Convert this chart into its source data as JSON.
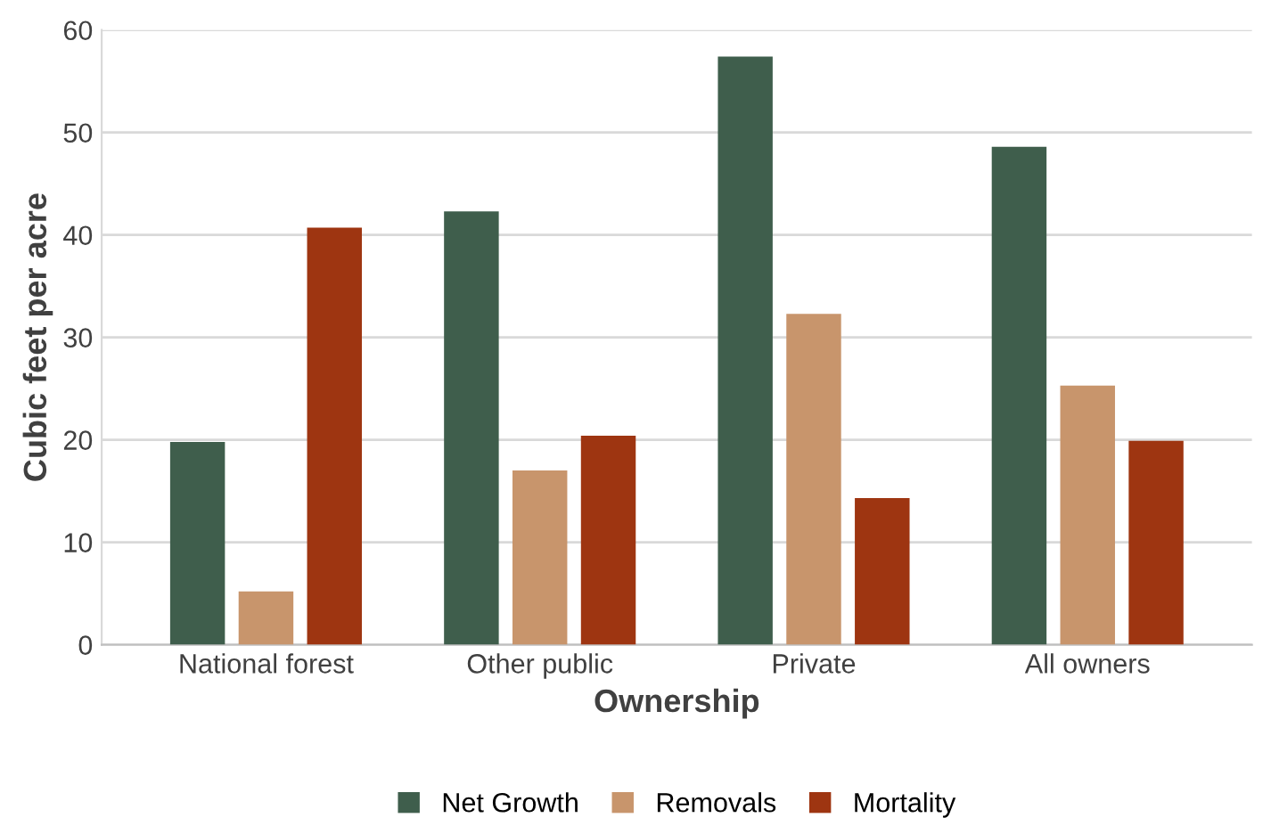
{
  "chart_data": {
    "type": "bar",
    "xlabel": "Ownership",
    "ylabel": "Cubic feet per acre",
    "categories": [
      "National forest",
      "Other public",
      "Private",
      "All owners"
    ],
    "series": [
      {
        "name": "Net Growth",
        "color": "#3f5e4c",
        "values": [
          19.8,
          42.3,
          57.4,
          48.6
        ]
      },
      {
        "name": "Removals",
        "color": "#c8956c",
        "values": [
          5.2,
          17.0,
          32.3,
          25.3
        ]
      },
      {
        "name": "Mortality",
        "color": "#9e3511",
        "values": [
          40.7,
          20.4,
          14.3,
          19.9
        ]
      }
    ],
    "ylim": [
      0,
      60
    ],
    "yticks": [
      0,
      10,
      20,
      30,
      40,
      50,
      60
    ],
    "grid": "y",
    "legend": "bottom"
  }
}
